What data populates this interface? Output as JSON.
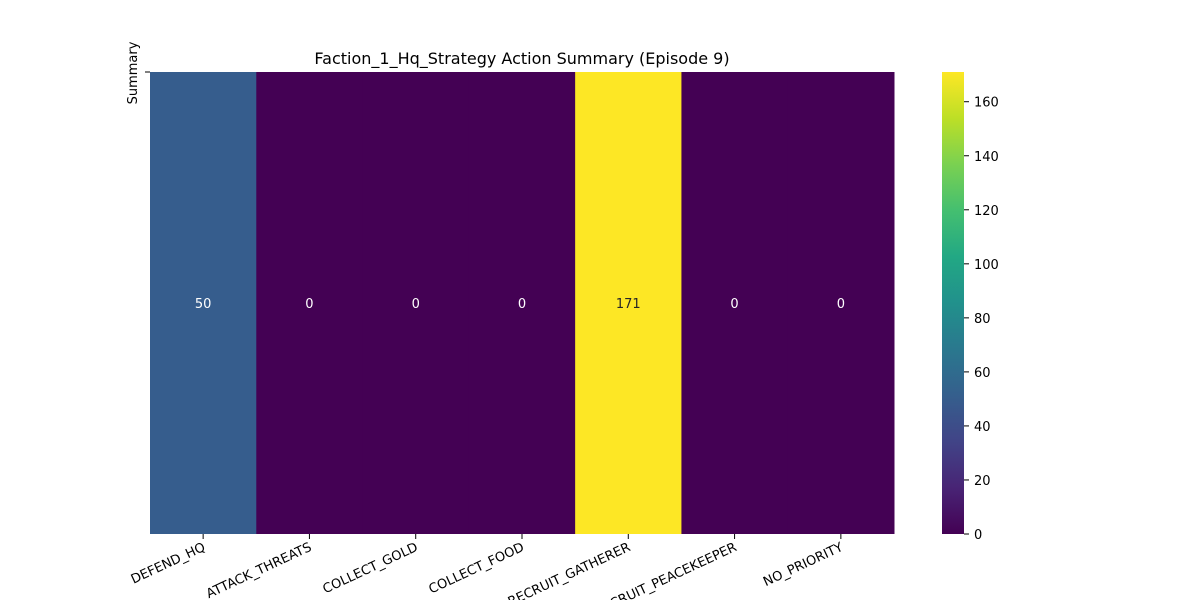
{
  "chart_data": {
    "type": "heatmap",
    "title": "Faction_1_Hq_Strategy Action Summary (Episode 9)",
    "ylabel": "Summary",
    "categories": [
      "DEFEND_HQ",
      "ATTACK_THREATS",
      "COLLECT_GOLD",
      "COLLECT_FOOD",
      "RECRUIT_GATHERER",
      "RECRUIT_PEACEKEEPER",
      "NO_PRIORITY"
    ],
    "values": [
      50,
      0,
      0,
      0,
      171,
      0,
      0
    ],
    "value_labels": [
      "50",
      "0",
      "0",
      "0",
      "171",
      "0",
      "0"
    ],
    "colorscale": "viridis",
    "color_range": [
      0,
      171
    ],
    "colorbar_ticks": [
      0,
      20,
      40,
      60,
      80,
      100,
      120,
      140,
      160
    ],
    "colorbar_tick_labels": [
      "0",
      "20",
      "40",
      "60",
      "80",
      "100",
      "120",
      "140",
      "160"
    ],
    "grid": false,
    "legend": "colorbar-right"
  }
}
